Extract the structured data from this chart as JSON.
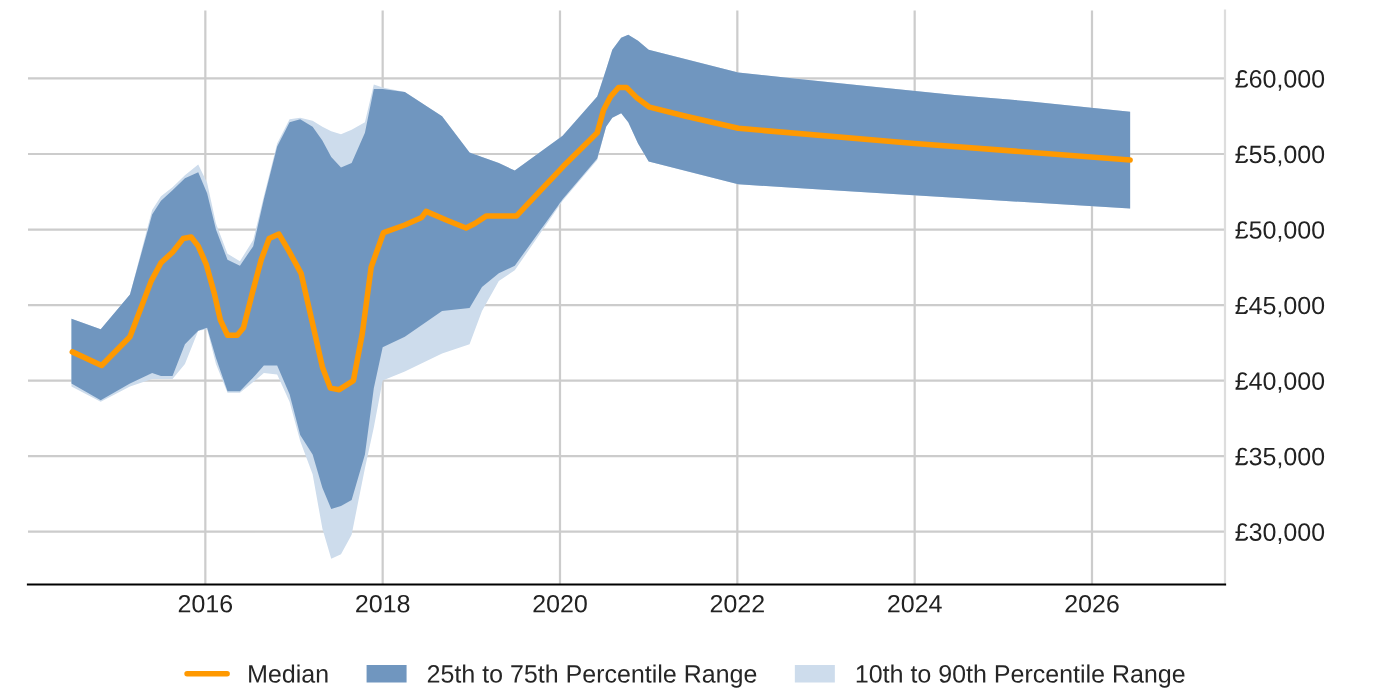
{
  "chart_data": {
    "type": "line",
    "xlim": [
      2014.0,
      2027.5
    ],
    "xticks": [
      2016,
      2018,
      2020,
      2022,
      2024,
      2026
    ],
    "ylim": [
      26500,
      64500
    ],
    "yticks": [
      {
        "value": 30000,
        "label": "£30,000"
      },
      {
        "value": 35000,
        "label": "£35,000"
      },
      {
        "value": 40000,
        "label": "£40,000"
      },
      {
        "value": 45000,
        "label": "£45,000"
      },
      {
        "value": 50000,
        "label": "£50,000"
      },
      {
        "value": 55000,
        "label": "£55,000"
      },
      {
        "value": 60000,
        "label": "£60,000"
      }
    ],
    "grid": true,
    "legend": "bottom",
    "series": [
      {
        "name": "Median",
        "type": "line",
        "color": "#ff9900",
        "x": [
          2014.5,
          2014.83,
          2015.15,
          2015.39,
          2015.5,
          2015.63,
          2015.75,
          2015.84,
          2015.92,
          2016.01,
          2016.1,
          2016.17,
          2016.25,
          2016.36,
          2016.43,
          2016.53,
          2016.63,
          2016.72,
          2016.83,
          2016.94,
          2017.08,
          2017.22,
          2017.32,
          2017.41,
          2017.51,
          2017.67,
          2017.77,
          2017.87,
          2018.01,
          2018.25,
          2018.44,
          2018.49,
          2018.73,
          2018.94,
          2019.04,
          2019.17,
          2019.51,
          2020.04,
          2020.42,
          2020.49,
          2020.57,
          2020.66,
          2020.75,
          2020.87,
          2021.01,
          2021.42,
          2022.01,
          2024.0,
          2026.43
        ],
        "values": [
          41900,
          41000,
          42900,
          46600,
          47800,
          48500,
          49400,
          49500,
          48900,
          47700,
          45800,
          44000,
          43000,
          43000,
          43500,
          45800,
          48000,
          49400,
          49700,
          48600,
          47100,
          43500,
          40900,
          39500,
          39400,
          40000,
          43100,
          47500,
          49800,
          50300,
          50800,
          51200,
          50600,
          50100,
          50400,
          50900,
          50900,
          54200,
          56400,
          57900,
          58800,
          59400,
          59400,
          58700,
          58100,
          57500,
          56700,
          55700,
          54600
        ]
      },
      {
        "name": "25th to 75th Percentile Range",
        "type": "area",
        "color": "#7096bf",
        "x": [
          2014.49,
          2014.82,
          2015.15,
          2015.4,
          2015.5,
          2015.63,
          2015.77,
          2015.92,
          2016.02,
          2016.12,
          2016.25,
          2016.39,
          2016.54,
          2016.66,
          2016.81,
          2016.95,
          2017.07,
          2017.21,
          2017.32,
          2017.42,
          2017.53,
          2017.65,
          2017.8,
          2017.9,
          2018.0,
          2018.25,
          2018.67,
          2018.98,
          2019.12,
          2019.31,
          2019.49,
          2020.03,
          2020.42,
          2020.52,
          2020.59,
          2020.69,
          2020.77,
          2020.88,
          2021.0,
          2022.01,
          2022.8,
          2023.62,
          2024.45,
          2025.28,
          2026.43
        ],
        "lower": [
          39800,
          38700,
          39800,
          40500,
          40300,
          40300,
          42400,
          43300,
          43500,
          41500,
          39300,
          39300,
          40200,
          41000,
          41000,
          39100,
          36400,
          35100,
          32900,
          31500,
          31700,
          32100,
          35100,
          39500,
          42200,
          42900,
          44600,
          44800,
          46200,
          47100,
          47600,
          52000,
          54700,
          56800,
          57400,
          57700,
          57100,
          55700,
          54500,
          53000,
          52700,
          52400,
          52100,
          51800,
          51400
        ],
        "values": [
          null,
          null,
          null,
          null,
          null,
          null,
          null,
          null,
          null,
          null,
          null,
          null,
          null,
          null,
          null,
          null,
          null,
          null,
          null,
          null,
          null,
          null,
          null,
          null,
          null,
          null,
          null,
          null,
          null,
          null,
          null,
          null,
          null,
          null,
          null,
          null,
          null,
          null,
          null,
          null,
          null,
          null,
          null,
          null,
          null
        ],
        "upper": [
          44100,
          43400,
          45700,
          51000,
          51900,
          52600,
          53400,
          53800,
          52400,
          50000,
          48000,
          47600,
          48900,
          52000,
          55500,
          57100,
          57300,
          56800,
          55900,
          54800,
          54100,
          54400,
          56400,
          59300,
          59300,
          59100,
          57500,
          55100,
          54800,
          54400,
          53900,
          56200,
          58800,
          60600,
          61900,
          62700,
          62900,
          62500,
          61900,
          60400,
          59900,
          59400,
          58900,
          58500,
          57800
        ]
      },
      {
        "name": "10th to 90th Percentile Range",
        "type": "area",
        "color": "#cddcec",
        "x": [
          2014.49,
          2014.82,
          2015.15,
          2015.4,
          2015.5,
          2015.63,
          2015.77,
          2015.92,
          2016.02,
          2016.12,
          2016.25,
          2016.39,
          2016.54,
          2016.66,
          2016.81,
          2016.95,
          2017.07,
          2017.21,
          2017.32,
          2017.42,
          2017.53,
          2017.65,
          2017.8,
          2017.9,
          2018.0,
          2018.25,
          2018.67,
          2018.98,
          2019.12,
          2019.31,
          2019.49,
          2020.03,
          2020.42,
          2020.52,
          2020.59,
          2020.69,
          2020.77,
          2020.88,
          2021.0,
          2022.01,
          2022.8,
          2023.62,
          2024.45,
          2025.28,
          2026.43
        ],
        "lower": [
          39600,
          38600,
          39600,
          40100,
          40100,
          40100,
          41100,
          43300,
          43400,
          41100,
          39200,
          39200,
          39900,
          40500,
          40400,
          38600,
          36000,
          33800,
          30200,
          28200,
          28500,
          29800,
          34200,
          36900,
          40000,
          40600,
          41800,
          42400,
          44600,
          46600,
          47300,
          51900,
          54600,
          56800,
          57400,
          57700,
          57100,
          55700,
          54500,
          53000,
          52700,
          52400,
          52100,
          51800,
          51400
        ],
        "values": [
          null,
          null,
          null,
          null,
          null,
          null,
          null,
          null,
          null,
          null,
          null,
          null,
          null,
          null,
          null,
          null,
          null,
          null,
          null,
          null,
          null,
          null,
          null,
          null,
          null,
          null,
          null,
          null,
          null,
          null,
          null,
          null,
          null,
          null,
          null,
          null,
          null,
          null,
          null,
          null,
          null,
          null,
          null,
          null,
          null
        ],
        "upper": [
          44100,
          43400,
          45700,
          51300,
          52200,
          52800,
          53600,
          54300,
          53100,
          50400,
          48400,
          47900,
          49300,
          52200,
          55700,
          57300,
          57400,
          57200,
          56800,
          56500,
          56300,
          56600,
          57100,
          59600,
          59400,
          59100,
          57500,
          55100,
          54800,
          54400,
          53900,
          56200,
          58800,
          60600,
          61900,
          62700,
          62900,
          62500,
          61900,
          60400,
          59900,
          59400,
          58900,
          58500,
          57800
        ]
      }
    ]
  }
}
